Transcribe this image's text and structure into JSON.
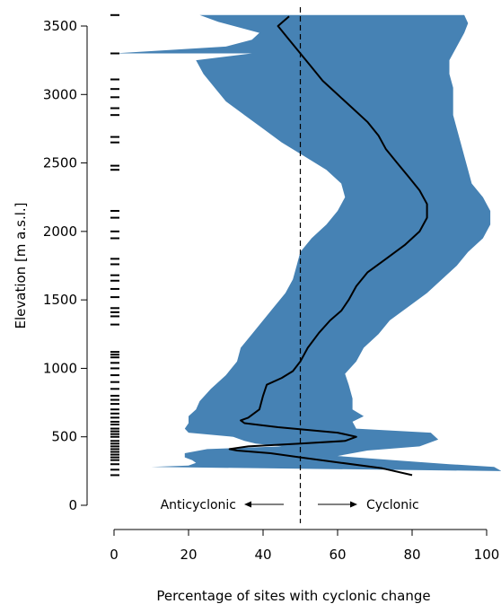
{
  "chart_data": {
    "type": "line",
    "title": "",
    "xlabel": "Percentage of sites with cyclonic change",
    "ylabel": "Elevation [m a.s.l.]",
    "xlim": [
      0,
      100
    ],
    "ylim": [
      0,
      3600
    ],
    "x_ticks": [
      0,
      20,
      40,
      60,
      80,
      100
    ],
    "y_ticks": [
      0,
      500,
      1000,
      1500,
      2000,
      2500,
      3000,
      3500
    ],
    "reference_line": {
      "x": 50,
      "style": "dashed"
    },
    "annotations": {
      "left": "Anticyclonic",
      "right": "Cyclonic"
    },
    "colors": {
      "band": "#4682b4",
      "line": "#000000"
    },
    "series": [
      {
        "role": "mean",
        "points": [
          [
            80,
            220
          ],
          [
            72,
            270
          ],
          [
            61,
            310
          ],
          [
            50,
            350
          ],
          [
            42,
            380
          ],
          [
            33,
            400
          ],
          [
            31,
            410
          ],
          [
            36,
            430
          ],
          [
            50,
            450
          ],
          [
            62,
            470
          ],
          [
            65,
            500
          ],
          [
            60,
            530
          ],
          [
            44,
            570
          ],
          [
            35,
            600
          ],
          [
            34,
            620
          ],
          [
            36,
            640
          ],
          [
            39,
            700
          ],
          [
            40,
            800
          ],
          [
            41,
            880
          ],
          [
            45,
            930
          ],
          [
            48,
            980
          ],
          [
            50,
            1050
          ],
          [
            52,
            1150
          ],
          [
            55,
            1260
          ],
          [
            58,
            1350
          ],
          [
            61,
            1420
          ],
          [
            63,
            1500
          ],
          [
            65,
            1600
          ],
          [
            68,
            1700
          ],
          [
            73,
            1800
          ],
          [
            78,
            1900
          ],
          [
            82,
            2000
          ],
          [
            84,
            2100
          ],
          [
            84,
            2200
          ],
          [
            82,
            2300
          ],
          [
            79,
            2400
          ],
          [
            76,
            2500
          ],
          [
            73,
            2600
          ],
          [
            71,
            2700
          ],
          [
            68,
            2800
          ],
          [
            64,
            2900
          ],
          [
            60,
            3000
          ],
          [
            56,
            3100
          ],
          [
            53,
            3200
          ],
          [
            50,
            3300
          ],
          [
            47,
            3400
          ],
          [
            44,
            3500
          ],
          [
            47,
            3570
          ]
        ]
      },
      {
        "role": "uncertainty band upper",
        "points": [
          [
            104,
            250
          ],
          [
            102,
            280
          ],
          [
            90,
            300
          ],
          [
            75,
            330
          ],
          [
            60,
            360
          ],
          [
            68,
            400
          ],
          [
            82,
            430
          ],
          [
            87,
            480
          ],
          [
            85,
            530
          ],
          [
            65,
            560
          ],
          [
            64,
            610
          ],
          [
            67,
            650
          ],
          [
            64,
            700
          ],
          [
            64,
            780
          ],
          [
            63,
            880
          ],
          [
            62,
            960
          ],
          [
            65,
            1050
          ],
          [
            67,
            1150
          ],
          [
            71,
            1250
          ],
          [
            74,
            1350
          ],
          [
            79,
            1450
          ],
          [
            84,
            1550
          ],
          [
            88,
            1650
          ],
          [
            92,
            1750
          ],
          [
            95,
            1850
          ],
          [
            99,
            1950
          ],
          [
            101,
            2050
          ],
          [
            101,
            2150
          ],
          [
            99,
            2250
          ],
          [
            96,
            2350
          ],
          [
            95,
            2450
          ],
          [
            94,
            2550
          ],
          [
            93,
            2650
          ],
          [
            92,
            2750
          ],
          [
            91,
            2850
          ],
          [
            91,
            2950
          ],
          [
            91,
            3050
          ],
          [
            90,
            3150
          ],
          [
            90,
            3250
          ],
          [
            92,
            3350
          ],
          [
            94,
            3450
          ],
          [
            95,
            3520
          ],
          [
            94,
            3580
          ]
        ]
      },
      {
        "role": "uncertainty band lower",
        "points": [
          [
            10,
            280
          ],
          [
            20,
            290
          ],
          [
            22,
            310
          ],
          [
            21,
            330
          ],
          [
            19,
            350
          ],
          [
            19,
            380
          ],
          [
            25,
            410
          ],
          [
            45,
            430
          ],
          [
            38,
            450
          ],
          [
            35,
            470
          ],
          [
            32,
            500
          ],
          [
            20,
            530
          ],
          [
            19,
            560
          ],
          [
            20,
            600
          ],
          [
            20,
            650
          ],
          [
            22,
            700
          ],
          [
            23,
            760
          ],
          [
            26,
            850
          ],
          [
            30,
            950
          ],
          [
            33,
            1050
          ],
          [
            34,
            1150
          ],
          [
            37,
            1250
          ],
          [
            40,
            1350
          ],
          [
            43,
            1450
          ],
          [
            46,
            1550
          ],
          [
            48,
            1650
          ],
          [
            49,
            1750
          ],
          [
            50,
            1850
          ],
          [
            53,
            1950
          ],
          [
            57,
            2050
          ],
          [
            60,
            2150
          ],
          [
            62,
            2250
          ],
          [
            61,
            2350
          ],
          [
            57,
            2450
          ],
          [
            51,
            2550
          ],
          [
            45,
            2650
          ],
          [
            40,
            2750
          ],
          [
            35,
            2850
          ],
          [
            30,
            2950
          ],
          [
            27,
            3050
          ],
          [
            24,
            3150
          ],
          [
            22,
            3250
          ],
          [
            37,
            3300
          ],
          [
            0,
            3300
          ],
          [
            30,
            3350
          ],
          [
            37,
            3400
          ],
          [
            39,
            3450
          ],
          [
            28,
            3530
          ],
          [
            23,
            3580
          ]
        ]
      }
    ],
    "site_elevations": [
      220,
      260,
      300,
      330,
      350,
      370,
      390,
      410,
      430,
      450,
      470,
      500,
      520,
      540,
      560,
      590,
      610,
      640,
      670,
      700,
      740,
      770,
      800,
      850,
      900,
      950,
      1000,
      1040,
      1080,
      1100,
      1120,
      1320,
      1380,
      1410,
      1440,
      1520,
      1580,
      1640,
      1680,
      1760,
      1800,
      1950,
      2000,
      2100,
      2150,
      2450,
      2480,
      2650,
      2690,
      2850,
      2900,
      2980,
      3040,
      3110,
      3300,
      3580
    ]
  }
}
